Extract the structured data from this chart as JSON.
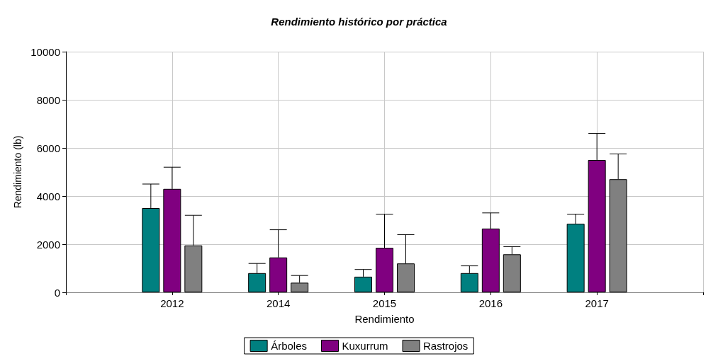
{
  "chart_data": {
    "type": "bar",
    "title": "Rendimiento histórico por práctica",
    "xlabel": "Rendimiento",
    "ylabel": "Rendimiento (lb)",
    "categories": [
      null,
      "2012",
      "2014",
      "2015",
      "2016",
      "2017",
      null
    ],
    "series": [
      {
        "name": "Árboles",
        "color": "#008080",
        "values": [
          null,
          3500,
          800,
          650,
          800,
          2850,
          null
        ],
        "errors": [
          null,
          [
            3500,
            4500
          ],
          [
            800,
            1200
          ],
          [
            650,
            950
          ],
          [
            800,
            1100
          ],
          [
            2850,
            3250
          ],
          null
        ]
      },
      {
        "name": "Kuxurrum",
        "color": "#800080",
        "values": [
          null,
          4300,
          1450,
          1850,
          2650,
          5500,
          null
        ],
        "errors": [
          null,
          [
            4300,
            5200
          ],
          [
            1450,
            2600
          ],
          [
            1850,
            3250
          ],
          [
            2650,
            3300
          ],
          [
            5500,
            6600
          ],
          null
        ]
      },
      {
        "name": "Rastrojos",
        "color": "#808080",
        "values": [
          null,
          1950,
          400,
          1200,
          1580,
          4700,
          null
        ],
        "errors": [
          null,
          [
            1950,
            3200
          ],
          [
            400,
            700
          ],
          [
            1200,
            2400
          ],
          [
            1580,
            1900
          ],
          [
            4700,
            5750
          ],
          null
        ]
      }
    ],
    "ylim": [
      0,
      10000
    ],
    "yticks": [
      0,
      2000,
      4000,
      6000,
      8000,
      10000
    ],
    "grid": true,
    "legend": "bottom"
  }
}
